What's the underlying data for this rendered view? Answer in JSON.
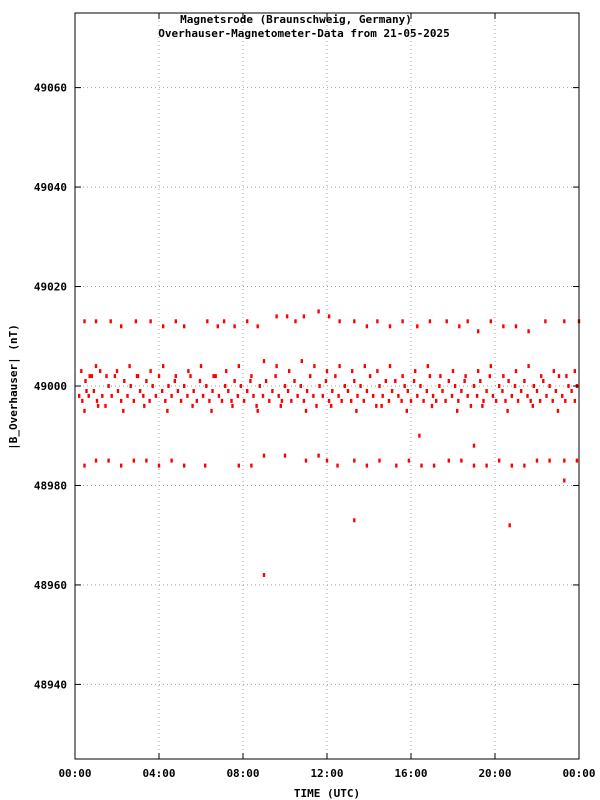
{
  "chart_data": {
    "type": "scatter",
    "title": "Magnetsrode (Braunschweig, Germany)",
    "subtitle": "Overhauser-Magnetometer-Data from 21-05-2025",
    "xlabel": "TIME (UTC)",
    "ylabel": "|B_Overhauser| (nT)",
    "xlim": [
      0,
      24
    ],
    "ylim": [
      48925,
      49075
    ],
    "x_ticks": [
      0,
      4,
      8,
      12,
      16,
      20,
      24
    ],
    "x_tick_labels": [
      "00:00",
      "04:00",
      "08:00",
      "12:00",
      "16:00",
      "20:00",
      "00:00"
    ],
    "y_ticks": [
      48940,
      48960,
      48980,
      49000,
      49020,
      49040,
      49060
    ],
    "y_tick_labels": [
      "48940",
      "48960",
      "48980",
      "49000",
      "49020",
      "49040",
      "49060"
    ],
    "grid": true,
    "colors": {
      "points": "#ff0000",
      "axes": "#000000",
      "grid": "#a0a0a0",
      "background": "#ffffff"
    },
    "band_levels_nT": [
      49013,
      49003,
      48999,
      48984
    ],
    "series": [
      {
        "values": [
          [
            0.2,
            48998
          ],
          [
            0.35,
            48997
          ],
          [
            0.5,
            49001
          ],
          [
            0.55,
            48999
          ],
          [
            0.65,
            48998
          ],
          [
            0.8,
            49002
          ],
          [
            0.9,
            48999
          ],
          [
            1.05,
            48997
          ],
          [
            1.2,
            49003
          ],
          [
            1.3,
            48998
          ],
          [
            1.45,
            48996
          ],
          [
            1.6,
            49000
          ],
          [
            1.75,
            48998
          ],
          [
            1.9,
            49002
          ],
          [
            2.05,
            48999
          ],
          [
            2.2,
            48997
          ],
          [
            2.35,
            49001
          ],
          [
            2.5,
            48998
          ],
          [
            2.65,
            49000
          ],
          [
            2.8,
            48997
          ],
          [
            2.95,
            49002
          ],
          [
            3.1,
            48999
          ],
          [
            3.25,
            48998
          ],
          [
            3.4,
            49001
          ],
          [
            3.55,
            48997
          ],
          [
            3.7,
            49000
          ],
          [
            3.85,
            48998
          ],
          [
            4.0,
            49002
          ],
          [
            4.15,
            48999
          ],
          [
            4.3,
            48997
          ],
          [
            4.45,
            49000
          ],
          [
            4.6,
            48998
          ],
          [
            4.75,
            49001
          ],
          [
            4.9,
            48999
          ],
          [
            5.05,
            48997
          ],
          [
            5.2,
            49000
          ],
          [
            5.35,
            48998
          ],
          [
            5.5,
            49002
          ],
          [
            5.65,
            48999
          ],
          [
            5.8,
            48997
          ],
          [
            5.95,
            49001
          ],
          [
            6.1,
            48998
          ],
          [
            6.25,
            49000
          ],
          [
            6.4,
            48997
          ],
          [
            6.55,
            48999
          ],
          [
            6.7,
            49002
          ],
          [
            6.85,
            48998
          ],
          [
            7.0,
            48997
          ],
          [
            7.15,
            49000
          ],
          [
            7.3,
            48999
          ],
          [
            7.45,
            48997
          ],
          [
            7.6,
            49001
          ],
          [
            7.75,
            48998
          ],
          [
            7.9,
            49000
          ],
          [
            8.05,
            48997
          ],
          [
            8.2,
            48999
          ],
          [
            8.35,
            49001
          ],
          [
            8.5,
            48998
          ],
          [
            8.65,
            48996
          ],
          [
            8.8,
            49000
          ],
          [
            8.95,
            48998
          ],
          [
            9.1,
            49001
          ],
          [
            9.25,
            48997
          ],
          [
            9.4,
            48999
          ],
          [
            9.55,
            49002
          ],
          [
            9.7,
            48998
          ],
          [
            9.85,
            48997
          ],
          [
            10.0,
            49000
          ],
          [
            10.15,
            48999
          ],
          [
            10.3,
            48997
          ],
          [
            10.45,
            49001
          ],
          [
            10.6,
            48998
          ],
          [
            10.75,
            49000
          ],
          [
            10.9,
            48997
          ],
          [
            11.05,
            48999
          ],
          [
            11.2,
            49002
          ],
          [
            11.35,
            48998
          ],
          [
            11.5,
            48996
          ],
          [
            11.65,
            49000
          ],
          [
            11.8,
            48998
          ],
          [
            11.95,
            49001
          ],
          [
            12.1,
            48997
          ],
          [
            12.25,
            48999
          ],
          [
            12.4,
            49002
          ],
          [
            12.55,
            48998
          ],
          [
            12.7,
            48997
          ],
          [
            12.85,
            49000
          ],
          [
            13.0,
            48999
          ],
          [
            13.15,
            48997
          ],
          [
            13.3,
            49001
          ],
          [
            13.45,
            48998
          ],
          [
            13.6,
            49000
          ],
          [
            13.75,
            48997
          ],
          [
            13.9,
            48999
          ],
          [
            14.05,
            49002
          ],
          [
            14.2,
            48998
          ],
          [
            14.35,
            48996
          ],
          [
            14.5,
            49000
          ],
          [
            14.65,
            48998
          ],
          [
            14.8,
            49001
          ],
          [
            14.95,
            48997
          ],
          [
            15.1,
            48999
          ],
          [
            15.25,
            49001
          ],
          [
            15.4,
            48998
          ],
          [
            15.55,
            48997
          ],
          [
            15.7,
            49000
          ],
          [
            15.85,
            48999
          ],
          [
            16.0,
            48997
          ],
          [
            16.15,
            49001
          ],
          [
            16.3,
            48998
          ],
          [
            16.45,
            49000
          ],
          [
            16.6,
            48997
          ],
          [
            16.75,
            48999
          ],
          [
            16.9,
            49002
          ],
          [
            17.05,
            48998
          ],
          [
            17.2,
            48997
          ],
          [
            17.35,
            49000
          ],
          [
            17.5,
            48999
          ],
          [
            17.65,
            48997
          ],
          [
            17.8,
            49001
          ],
          [
            17.95,
            48998
          ],
          [
            18.1,
            49000
          ],
          [
            18.25,
            48997
          ],
          [
            18.4,
            48999
          ],
          [
            18.55,
            49001
          ],
          [
            18.7,
            48998
          ],
          [
            18.85,
            48996
          ],
          [
            19.0,
            49000
          ],
          [
            19.15,
            48998
          ],
          [
            19.3,
            49001
          ],
          [
            19.45,
            48997
          ],
          [
            19.6,
            48999
          ],
          [
            19.75,
            49002
          ],
          [
            19.9,
            48998
          ],
          [
            20.05,
            48997
          ],
          [
            20.2,
            49000
          ],
          [
            20.35,
            48999
          ],
          [
            20.5,
            48997
          ],
          [
            20.65,
            49001
          ],
          [
            20.8,
            48998
          ],
          [
            20.95,
            49000
          ],
          [
            21.1,
            48997
          ],
          [
            21.25,
            48999
          ],
          [
            21.4,
            49001
          ],
          [
            21.55,
            48998
          ],
          [
            21.7,
            48997
          ],
          [
            21.85,
            49000
          ],
          [
            22.0,
            48999
          ],
          [
            22.15,
            48997
          ],
          [
            22.3,
            49001
          ],
          [
            22.45,
            48998
          ],
          [
            22.6,
            49000
          ],
          [
            22.75,
            48997
          ],
          [
            22.9,
            48999
          ],
          [
            23.05,
            49002
          ],
          [
            23.2,
            48998
          ],
          [
            23.35,
            48997
          ],
          [
            23.5,
            49000
          ],
          [
            23.65,
            48999
          ],
          [
            23.8,
            48997
          ],
          [
            23.9,
            49000
          ],
          [
            0.3,
            49003
          ],
          [
            0.7,
            49002
          ],
          [
            1.0,
            49004
          ],
          [
            1.5,
            49002
          ],
          [
            2.0,
            49003
          ],
          [
            2.6,
            49004
          ],
          [
            3.0,
            49002
          ],
          [
            3.6,
            49003
          ],
          [
            4.2,
            49004
          ],
          [
            4.8,
            49002
          ],
          [
            5.4,
            49003
          ],
          [
            6.0,
            49004
          ],
          [
            6.6,
            49002
          ],
          [
            7.2,
            49003
          ],
          [
            7.8,
            49004
          ],
          [
            8.4,
            49002
          ],
          [
            9.0,
            49005
          ],
          [
            9.6,
            49004
          ],
          [
            10.2,
            49003
          ],
          [
            10.8,
            49005
          ],
          [
            11.4,
            49004
          ],
          [
            12.0,
            49003
          ],
          [
            12.6,
            49004
          ],
          [
            13.2,
            49003
          ],
          [
            13.8,
            49004
          ],
          [
            14.4,
            49003
          ],
          [
            15.0,
            49004
          ],
          [
            15.6,
            49002
          ],
          [
            16.2,
            49003
          ],
          [
            16.8,
            49004
          ],
          [
            17.4,
            49002
          ],
          [
            18.0,
            49003
          ],
          [
            18.6,
            49002
          ],
          [
            19.2,
            49003
          ],
          [
            19.8,
            49004
          ],
          [
            20.4,
            49002
          ],
          [
            21.0,
            49003
          ],
          [
            21.6,
            49004
          ],
          [
            22.2,
            49002
          ],
          [
            22.8,
            49003
          ],
          [
            23.4,
            49002
          ],
          [
            23.8,
            49003
          ],
          [
            0.45,
            48995
          ],
          [
            1.1,
            48996
          ],
          [
            2.3,
            48995
          ],
          [
            3.3,
            48996
          ],
          [
            4.4,
            48995
          ],
          [
            5.6,
            48996
          ],
          [
            6.5,
            48995
          ],
          [
            7.5,
            48996
          ],
          [
            8.7,
            48995
          ],
          [
            9.8,
            48996
          ],
          [
            11.0,
            48995
          ],
          [
            12.2,
            48996
          ],
          [
            13.4,
            48995
          ],
          [
            14.6,
            48996
          ],
          [
            15.8,
            48995
          ],
          [
            17.0,
            48996
          ],
          [
            18.2,
            48995
          ],
          [
            19.4,
            48996
          ],
          [
            20.6,
            48995
          ],
          [
            21.8,
            48996
          ],
          [
            23.0,
            48995
          ],
          [
            0.45,
            49013
          ],
          [
            1.0,
            49013
          ],
          [
            1.7,
            49013
          ],
          [
            2.2,
            49012
          ],
          [
            2.9,
            49013
          ],
          [
            3.6,
            49013
          ],
          [
            4.2,
            49012
          ],
          [
            4.8,
            49013
          ],
          [
            5.2,
            49012
          ],
          [
            6.3,
            49013
          ],
          [
            6.8,
            49012
          ],
          [
            7.1,
            49013
          ],
          [
            7.6,
            49012
          ],
          [
            8.2,
            49013
          ],
          [
            8.7,
            49012
          ],
          [
            9.6,
            49014
          ],
          [
            10.1,
            49014
          ],
          [
            10.5,
            49013
          ],
          [
            10.9,
            49014
          ],
          [
            11.6,
            49015
          ],
          [
            12.1,
            49014
          ],
          [
            12.6,
            49013
          ],
          [
            13.3,
            49013
          ],
          [
            13.9,
            49012
          ],
          [
            14.4,
            49013
          ],
          [
            15.0,
            49012
          ],
          [
            15.6,
            49013
          ],
          [
            16.3,
            49012
          ],
          [
            16.9,
            49013
          ],
          [
            17.7,
            49013
          ],
          [
            18.3,
            49012
          ],
          [
            18.7,
            49013
          ],
          [
            19.2,
            49011
          ],
          [
            19.8,
            49013
          ],
          [
            20.4,
            49012
          ],
          [
            21.0,
            49012
          ],
          [
            21.6,
            49011
          ],
          [
            22.4,
            49013
          ],
          [
            23.3,
            49013
          ],
          [
            24.0,
            49013
          ],
          [
            0.45,
            48984
          ],
          [
            1.0,
            48985
          ],
          [
            1.6,
            48985
          ],
          [
            2.2,
            48984
          ],
          [
            2.8,
            48985
          ],
          [
            3.4,
            48985
          ],
          [
            4.0,
            48984
          ],
          [
            4.6,
            48985
          ],
          [
            5.2,
            48984
          ],
          [
            6.2,
            48984
          ],
          [
            7.8,
            48984
          ],
          [
            8.4,
            48984
          ],
          [
            9.0,
            48986
          ],
          [
            10.0,
            48986
          ],
          [
            11.0,
            48985
          ],
          [
            11.6,
            48986
          ],
          [
            12.0,
            48985
          ],
          [
            12.5,
            48984
          ],
          [
            13.3,
            48985
          ],
          [
            13.9,
            48984
          ],
          [
            14.5,
            48985
          ],
          [
            15.3,
            48984
          ],
          [
            15.9,
            48985
          ],
          [
            16.5,
            48984
          ],
          [
            17.1,
            48984
          ],
          [
            17.8,
            48985
          ],
          [
            18.4,
            48985
          ],
          [
            19.0,
            48984
          ],
          [
            19.6,
            48984
          ],
          [
            20.2,
            48985
          ],
          [
            20.8,
            48984
          ],
          [
            21.4,
            48984
          ],
          [
            22.0,
            48985
          ],
          [
            22.6,
            48985
          ],
          [
            23.3,
            48985
          ],
          [
            23.9,
            48985
          ],
          [
            9.0,
            48962
          ],
          [
            13.3,
            48973
          ],
          [
            16.4,
            48990
          ],
          [
            19.0,
            48988
          ],
          [
            20.7,
            48972
          ],
          [
            23.3,
            48981
          ]
        ]
      }
    ]
  }
}
